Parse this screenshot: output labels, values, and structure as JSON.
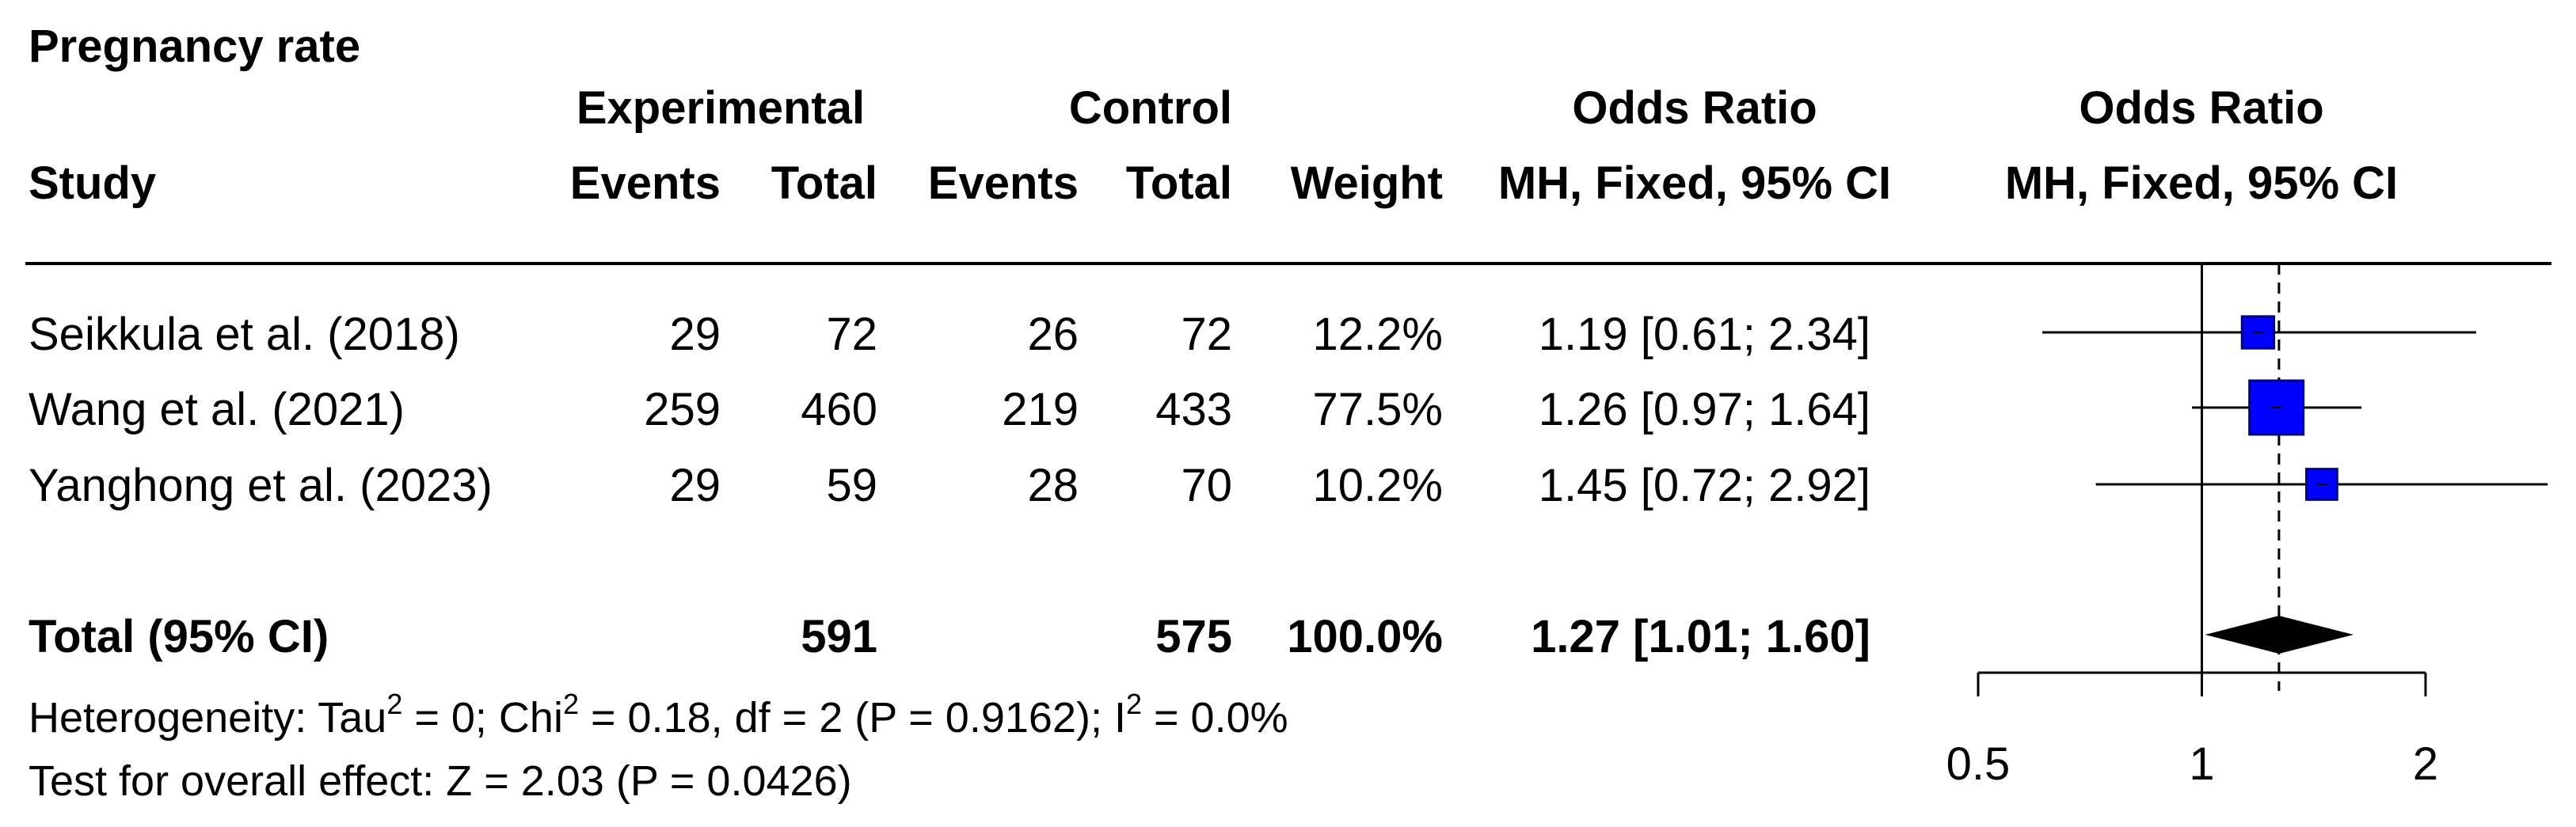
{
  "title": "Pregnancy rate",
  "headers": {
    "experimental": "Experimental",
    "control": "Control",
    "odds_ratio": "Odds Ratio",
    "odds_ratio_plot": "Odds Ratio",
    "study": "Study",
    "exp_events": "Events",
    "exp_total": "Total",
    "ctl_events": "Events",
    "ctl_total": "Total",
    "weight": "Weight",
    "method": "MH, Fixed, 95% CI",
    "method_plot": "MH, Fixed, 95% CI"
  },
  "studies": [
    {
      "name": "Seikkula et al. (2018)",
      "exp_events": "29",
      "exp_total": "72",
      "ctl_events": "26",
      "ctl_total": "72",
      "weight": "12.2%",
      "ci_text": "1.19 [0.61; 2.34]"
    },
    {
      "name": "Wang et al. (2021)",
      "exp_events": "259",
      "exp_total": "460",
      "ctl_events": "219",
      "ctl_total": "433",
      "weight": "77.5%",
      "ci_text": "1.26 [0.97; 1.64]"
    },
    {
      "name": "Yanghong et al. (2023)",
      "exp_events": "29",
      "exp_total": "59",
      "ctl_events": "28",
      "ctl_total": "70",
      "weight": "10.2%",
      "ci_text": "1.45 [0.72; 2.92]"
    }
  ],
  "total": {
    "label": "Total (95% CI)",
    "exp_total": "591",
    "ctl_total": "575",
    "weight": "100.0%",
    "ci_text": "1.27 [1.01; 1.60]"
  },
  "heterogeneity": {
    "prefix": "Heterogeneity: Tau",
    "tau_sup": "2",
    "mid1": " = 0; Chi",
    "chi_sup": "2",
    "mid2": " = 0.18, df = 2 (P = 0.9162); I",
    "i_sup": "2",
    "suffix": " = 0.0%"
  },
  "overall_effect": "Test for overall effect: Z = 2.03 (P = 0.0426)",
  "colors": {
    "square_fill": "#0000ff",
    "square_stroke": "#00008b",
    "diamond": "#000000"
  },
  "chart_data": {
    "type": "forest",
    "x_scale": "log",
    "xlim": [
      0.5,
      2
    ],
    "ticks": [
      0.5,
      1,
      2
    ],
    "tick_labels": [
      "0.5",
      "1",
      "2"
    ],
    "null_line": 1,
    "pooled_line": 1.27,
    "studies": [
      {
        "or": 1.19,
        "lo": 0.61,
        "hi": 2.34,
        "weight": 12.2
      },
      {
        "or": 1.26,
        "lo": 0.97,
        "hi": 1.64,
        "weight": 77.5
      },
      {
        "or": 1.45,
        "lo": 0.72,
        "hi": 2.92,
        "weight": 10.2
      }
    ],
    "pooled": {
      "or": 1.27,
      "lo": 1.01,
      "hi": 1.6
    }
  }
}
